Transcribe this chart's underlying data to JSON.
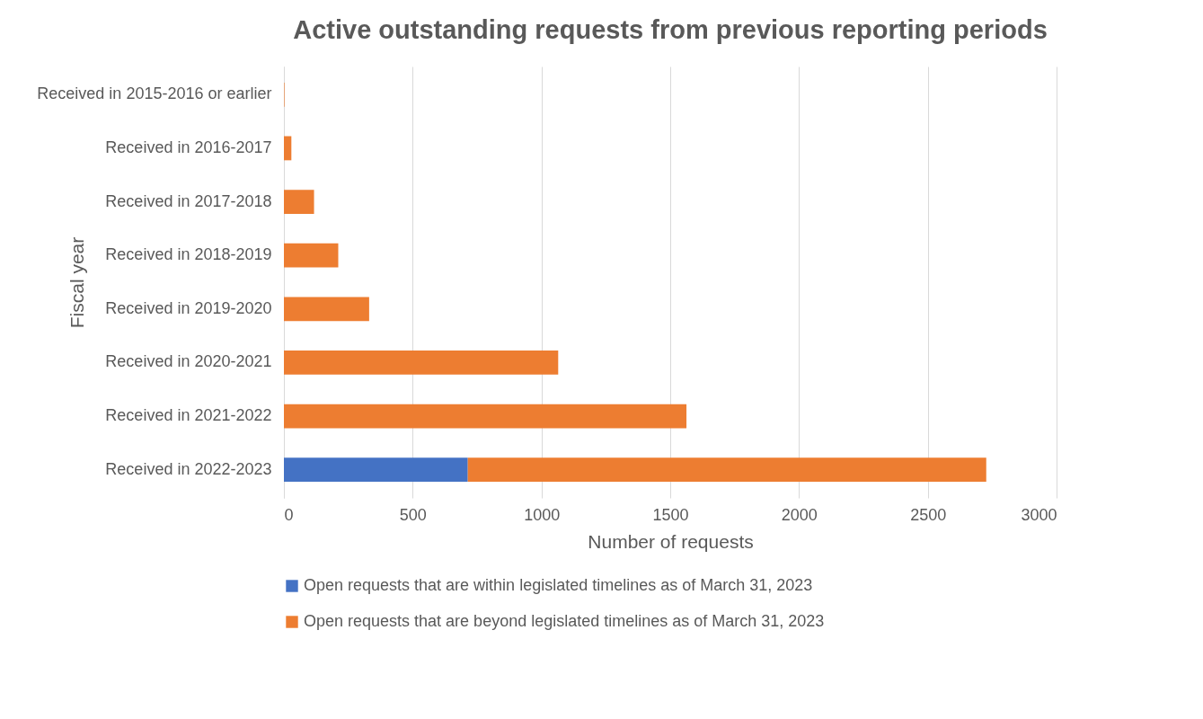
{
  "chart_data": {
    "type": "bar",
    "orientation": "horizontal",
    "stacked": true,
    "title": "Active outstanding requests from previous reporting periods",
    "xlabel": "Number of requests",
    "ylabel": "Fiscal year",
    "categories": [
      "Received in 2015-2016 or earlier",
      "Received in 2016-2017",
      "Received in 2017-2018",
      "Received in 2018-2019",
      "Received in 2019-2020",
      "Received in 2020-2021",
      "Received in 2021-2022",
      "Received in 2022-2023"
    ],
    "series": [
      {
        "name": "Open requests that are within legislated timelines as of March 31, 2023",
        "color": "#4472c4",
        "values": [
          0,
          0,
          0,
          0,
          0,
          0,
          0,
          714
        ]
      },
      {
        "name": "Open requests that are beyond legislated timelines as of March 31, 2023",
        "color": "#ed7d31",
        "values": [
          2,
          29,
          117,
          211,
          331,
          1065,
          1563,
          2013
        ]
      }
    ],
    "xlim": [
      0,
      3000
    ],
    "xticks": [
      0,
      500,
      1000,
      1500,
      2000,
      2500,
      3000
    ],
    "grid": "x",
    "legend": "bottom"
  }
}
